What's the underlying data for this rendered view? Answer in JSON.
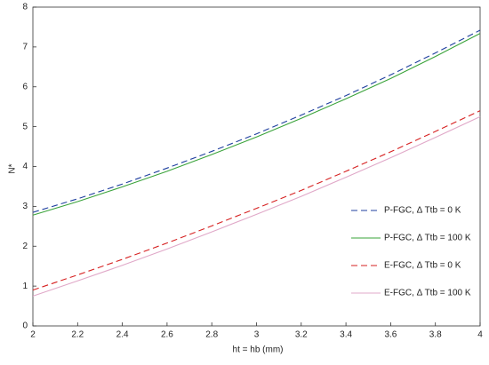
{
  "chart_data": {
    "type": "line",
    "x_label": "ht = hb (mm)",
    "y_label": "N*",
    "x": [
      2,
      2.2,
      2.4,
      2.6,
      2.8,
      3,
      3.2,
      3.4,
      3.6,
      3.8,
      4
    ],
    "series": [
      {
        "name": "P-FGC,  Δ Ttb = 0 K",
        "color": "#1f3f9f",
        "dash": true,
        "values": [
          2.85,
          3.19,
          3.56,
          3.96,
          4.38,
          4.82,
          5.29,
          5.78,
          6.3,
          6.85,
          7.42
        ]
      },
      {
        "name": "P-FGC,  Δ Ttb = 100 K",
        "color": "#3aa33a",
        "dash": false,
        "values": [
          2.78,
          3.12,
          3.49,
          3.88,
          4.3,
          4.74,
          5.21,
          5.7,
          6.21,
          6.76,
          7.34
        ]
      },
      {
        "name": "E-FGC,  Δ Ttb = 0 K",
        "color": "#d62020",
        "dash": true,
        "values": [
          0.9,
          1.28,
          1.67,
          2.08,
          2.51,
          2.95,
          3.4,
          3.88,
          4.37,
          4.88,
          5.4
        ]
      },
      {
        "name": "E-FGC,  Δ Ttb = 100 K",
        "color": "#e0a8c8",
        "dash": false,
        "values": [
          0.75,
          1.13,
          1.52,
          1.93,
          2.36,
          2.8,
          3.25,
          3.73,
          4.22,
          4.73,
          5.25
        ]
      }
    ],
    "xlim": [
      2,
      4
    ],
    "ylim": [
      0,
      8
    ],
    "xticks": [
      2,
      2.2,
      2.4,
      2.6,
      2.8,
      3,
      3.2,
      3.4,
      3.6,
      3.8,
      4
    ],
    "yticks": [
      0,
      1,
      2,
      3,
      4,
      5,
      6,
      7,
      8
    ],
    "grid": false
  }
}
